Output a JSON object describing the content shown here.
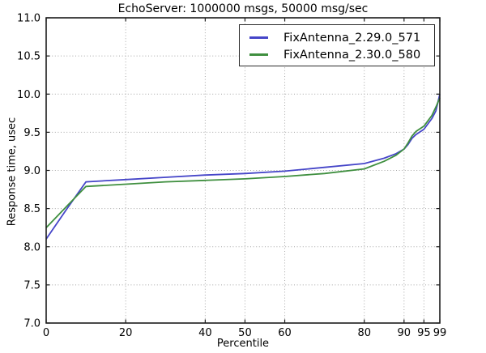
{
  "chart_data": {
    "type": "line",
    "title": "EchoServer: 1000000 msgs, 50000 msg/sec",
    "xlabel": "Percentile",
    "ylabel": "Response time, usec",
    "xlim": [
      0,
      99
    ],
    "ylim": [
      7.0,
      11.0
    ],
    "grid": true,
    "grid_style": "dotted",
    "legend_position": "upper right",
    "xticks": [
      0,
      20,
      40,
      50,
      60,
      80,
      90,
      95,
      99
    ],
    "xtick_labels": [
      "0",
      "20",
      "40",
      "50",
      "60",
      "80",
      "90",
      "95",
      "99"
    ],
    "yticks": [
      7.0,
      7.5,
      8.0,
      8.5,
      9.0,
      9.5,
      10.0,
      10.5,
      11.0
    ],
    "ytick_labels": [
      "7.0",
      "7.5",
      "8.0",
      "8.5",
      "9.0",
      "9.5",
      "10.0",
      "10.5",
      "11.0"
    ],
    "x": [
      0,
      5,
      10,
      20,
      30,
      40,
      50,
      60,
      70,
      80,
      85,
      88,
      90,
      91,
      92,
      93,
      95,
      97,
      98,
      99
    ],
    "series": [
      {
        "name": "FixAntenna_2.29.0_571",
        "color": "#4545c8",
        "values": [
          8.1,
          8.48,
          8.85,
          8.88,
          8.91,
          8.94,
          8.96,
          8.99,
          9.04,
          9.09,
          9.16,
          9.22,
          9.28,
          9.34,
          9.42,
          9.47,
          9.54,
          9.68,
          9.78,
          10.0
        ]
      },
      {
        "name": "FixAntenna_2.30.0_580",
        "color": "#3f8f3f",
        "values": [
          8.25,
          8.52,
          8.79,
          8.82,
          8.85,
          8.87,
          8.89,
          8.92,
          8.96,
          9.02,
          9.12,
          9.2,
          9.28,
          9.36,
          9.45,
          9.51,
          9.58,
          9.72,
          9.83,
          9.95
        ]
      }
    ]
  },
  "style": {
    "background": "#ffffff",
    "spine_color": "#1c1c1c",
    "grid_color": "#a8a8a8",
    "text_color": "#000000"
  }
}
